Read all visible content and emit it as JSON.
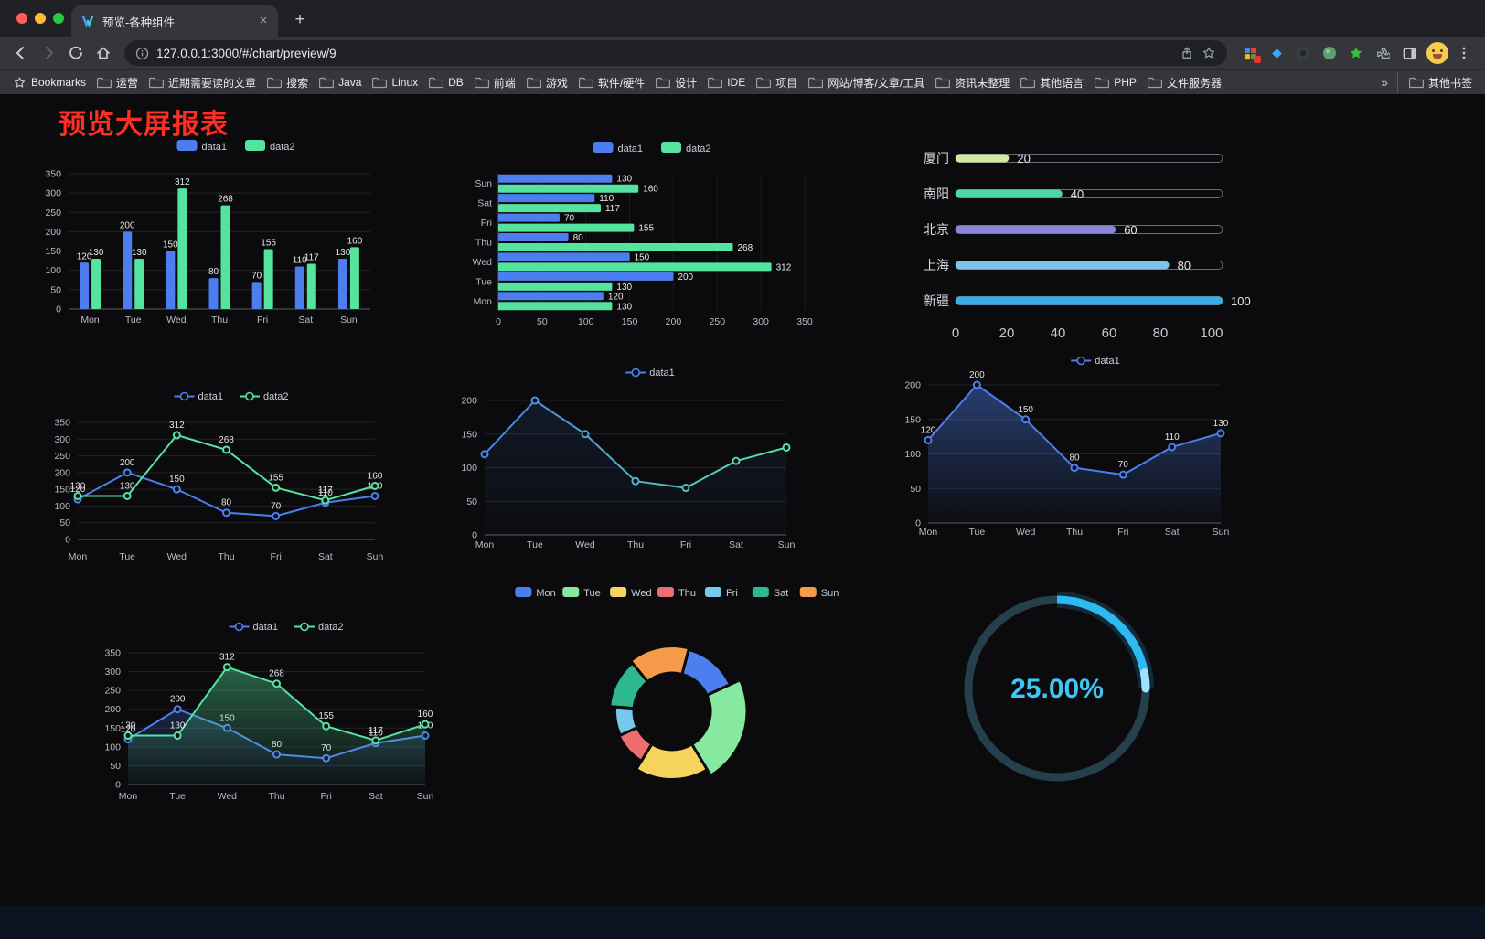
{
  "browser": {
    "tab": {
      "title": "预览-各种组件"
    },
    "close": "×",
    "new_tab": "+",
    "url": "127.0.0.1:3000/#/chart/preview/9",
    "bookmarks_bar": {
      "root_label": "Bookmarks",
      "folders": [
        "运营",
        "近期需要读的文章",
        "搜索",
        "Java",
        "Linux",
        "DB",
        "前端",
        "游戏",
        "软件/硬件",
        "设计",
        "IDE",
        "项目",
        "网站/博客/文章/工具",
        "资讯未整理",
        "其他语言",
        "PHP",
        "文件服务器"
      ],
      "overflow": "»",
      "other": "其他书签"
    }
  },
  "page": {
    "title": "预览大屏报表"
  },
  "chart_data": [
    {
      "id": "c1",
      "type": "bar",
      "categories": [
        "Mon",
        "Tue",
        "Wed",
        "Thu",
        "Fri",
        "Sat",
        "Sun"
      ],
      "series": [
        {
          "name": "data1",
          "color": "#4d7ef0",
          "values": [
            120,
            200,
            150,
            80,
            70,
            110,
            130
          ]
        },
        {
          "name": "data2",
          "color": "#55e3a0",
          "values": [
            130,
            130,
            312,
            268,
            155,
            117,
            160
          ]
        }
      ],
      "ylim": [
        0,
        350
      ],
      "ytick_step": 50,
      "labels": true,
      "grid": true,
      "legend_position": "top"
    },
    {
      "id": "c2",
      "type": "hbar",
      "categories": [
        "Mon",
        "Tue",
        "Wed",
        "Thu",
        "Fri",
        "Sat",
        "Sun"
      ],
      "series": [
        {
          "name": "data1",
          "color": "#4d7ef0",
          "values": [
            120,
            200,
            150,
            80,
            70,
            110,
            130
          ]
        },
        {
          "name": "data2",
          "color": "#55e3a0",
          "values": [
            130,
            130,
            312,
            268,
            155,
            117,
            160
          ]
        }
      ],
      "xlim": [
        0,
        350
      ],
      "xtick_step": 50,
      "labels": true,
      "grid": true,
      "legend_position": "top"
    },
    {
      "id": "c3",
      "type": "progress",
      "max": 100,
      "rows": [
        {
          "label": "厦门",
          "value": 20,
          "color": "#d3e8a3"
        },
        {
          "label": "南阳",
          "value": 40,
          "color": "#4fd6a8"
        },
        {
          "label": "北京",
          "value": 60,
          "color": "#8b85d8"
        },
        {
          "label": "上海",
          "value": 80,
          "color": "#7cc3e8"
        },
        {
          "label": "新疆",
          "value": 100,
          "color": "#38aee8"
        }
      ],
      "axis_ticks": [
        0,
        20,
        40,
        60,
        80,
        100
      ]
    },
    {
      "id": "c4",
      "type": "line",
      "categories": [
        "Mon",
        "Tue",
        "Wed",
        "Thu",
        "Fri",
        "Sat",
        "Sun"
      ],
      "series": [
        {
          "name": "data1",
          "color": "#4d7ef0",
          "values": [
            120,
            200,
            150,
            80,
            70,
            110,
            130
          ]
        },
        {
          "name": "data2",
          "color": "#55e3a0",
          "values": [
            130,
            130,
            312,
            268,
            155,
            117,
            160
          ]
        }
      ],
      "ylim": [
        0,
        350
      ],
      "ytick_step": 50,
      "labels": true,
      "grid": true,
      "legend_position": "top"
    },
    {
      "id": "c5",
      "type": "line",
      "categories": [
        "Mon",
        "Tue",
        "Wed",
        "Thu",
        "Fri",
        "Sat",
        "Sun"
      ],
      "series": [
        {
          "name": "data1",
          "gradient": true,
          "color_start": "#4a82f0",
          "color_end": "#57e69f",
          "values": [
            120,
            200,
            150,
            80,
            70,
            110,
            130
          ],
          "area": true,
          "area_opacity": 0.12
        }
      ],
      "ylim": [
        0,
        200
      ],
      "ytick_step": 50,
      "labels": false,
      "grid": true,
      "legend_position": "top"
    },
    {
      "id": "c6",
      "type": "line",
      "categories": [
        "Mon",
        "Tue",
        "Wed",
        "Thu",
        "Fri",
        "Sat",
        "Sun"
      ],
      "series": [
        {
          "name": "data1",
          "color": "#4d7ef0",
          "values": [
            120,
            200,
            150,
            80,
            70,
            110,
            130
          ],
          "area": true,
          "area_opacity": 0.45
        }
      ],
      "ylim": [
        0,
        200
      ],
      "ytick_step": 50,
      "labels": true,
      "grid": true,
      "legend_position": "top"
    },
    {
      "id": "c7",
      "type": "line",
      "categories": [
        "Mon",
        "Tue",
        "Wed",
        "Thu",
        "Fri",
        "Sat",
        "Sun"
      ],
      "series": [
        {
          "name": "data1",
          "color": "#4d7ef0",
          "values": [
            120,
            200,
            150,
            80,
            70,
            110,
            130
          ],
          "area": true,
          "area_opacity": 0.22
        },
        {
          "name": "data2",
          "color": "#55e3a0",
          "values": [
            130,
            130,
            312,
            268,
            155,
            117,
            160
          ],
          "area": true,
          "area_opacity": 0.4
        }
      ],
      "ylim": [
        0,
        350
      ],
      "ytick_step": 50,
      "labels": true,
      "grid": true,
      "legend_position": "top"
    },
    {
      "id": "c8",
      "type": "pie",
      "style": "rose-donut",
      "legend_position": "top",
      "items": [
        {
          "label": "Mon",
          "value": 120,
          "color": "#4d7ef0"
        },
        {
          "label": "Tue",
          "value": 200,
          "color": "#87e8a0"
        },
        {
          "label": "Wed",
          "value": 150,
          "color": "#f6d35d"
        },
        {
          "label": "Thu",
          "value": 80,
          "color": "#ec6e6e"
        },
        {
          "label": "Fri",
          "value": 70,
          "color": "#76c8ec"
        },
        {
          "label": "Sat",
          "value": 110,
          "color": "#2db890"
        },
        {
          "label": "Sun",
          "value": 130,
          "color": "#f59b4a"
        }
      ]
    },
    {
      "id": "c9",
      "type": "gauge",
      "value": 25,
      "label": "25.00%",
      "color": "#2fb9f2",
      "tip_color": "#9fe1ff",
      "track_color": "#25404c",
      "text_color": "#3ec7f6"
    }
  ]
}
